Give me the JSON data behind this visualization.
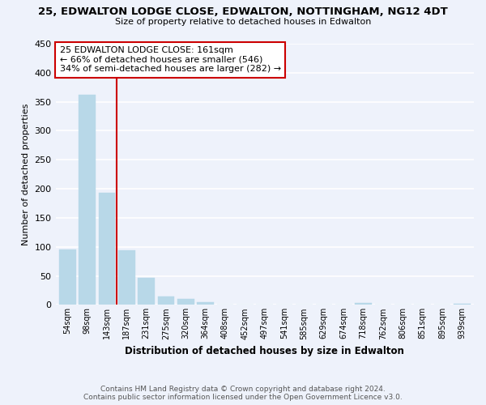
{
  "title": "25, EDWALTON LODGE CLOSE, EDWALTON, NOTTINGHAM, NG12 4DT",
  "subtitle": "Size of property relative to detached houses in Edwalton",
  "xlabel": "Distribution of detached houses by size in Edwalton",
  "ylabel": "Number of detached properties",
  "bar_labels": [
    "54sqm",
    "98sqm",
    "143sqm",
    "187sqm",
    "231sqm",
    "275sqm",
    "320sqm",
    "364sqm",
    "408sqm",
    "452sqm",
    "497sqm",
    "541sqm",
    "585sqm",
    "629sqm",
    "674sqm",
    "718sqm",
    "762sqm",
    "806sqm",
    "851sqm",
    "895sqm",
    "939sqm"
  ],
  "bar_values": [
    96,
    362,
    193,
    94,
    46,
    15,
    10,
    5,
    0,
    0,
    0,
    0,
    0,
    0,
    0,
    4,
    0,
    0,
    0,
    0,
    2
  ],
  "bar_color": "#b8d8e8",
  "bar_edge_color": "#b8d8e8",
  "ylim": [
    0,
    450
  ],
  "yticks": [
    0,
    50,
    100,
    150,
    200,
    250,
    300,
    350,
    400,
    450
  ],
  "vline_x": 2.5,
  "vline_color": "#cc0000",
  "annotation_title": "25 EDWALTON LODGE CLOSE: 161sqm",
  "annotation_line1": "← 66% of detached houses are smaller (546)",
  "annotation_line2": "34% of semi-detached houses are larger (282) →",
  "footer_line1": "Contains HM Land Registry data © Crown copyright and database right 2024.",
  "footer_line2": "Contains public sector information licensed under the Open Government Licence v3.0.",
  "background_color": "#eef2fb",
  "grid_color": "white"
}
